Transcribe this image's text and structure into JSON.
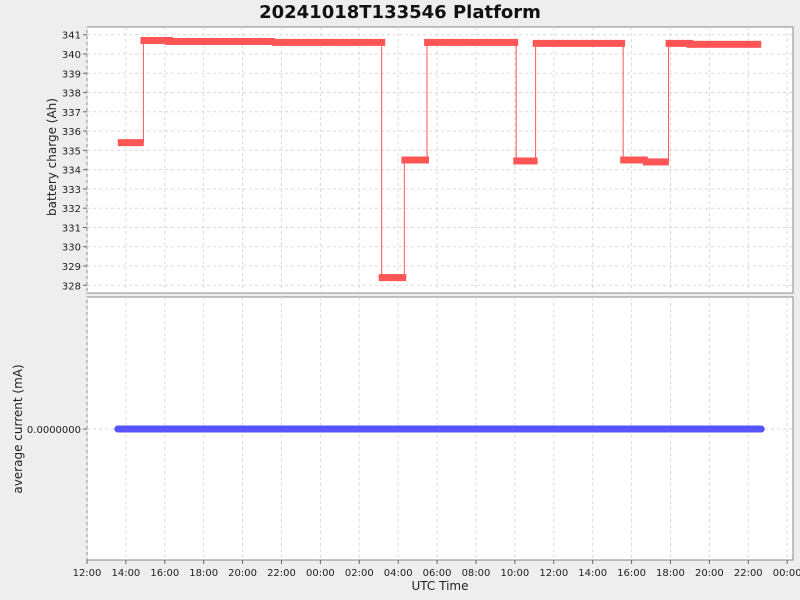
{
  "chart_data": {
    "title": "20241018T133546 Platform",
    "xlabel": "UTC Time",
    "x_ticks": [
      "12:00",
      "14:00",
      "16:00",
      "18:00",
      "20:00",
      "22:00",
      "00:00",
      "02:00",
      "04:00",
      "06:00",
      "08:00",
      "10:00",
      "12:00",
      "14:00",
      "16:00",
      "18:00",
      "20:00",
      "22:00",
      "00:00"
    ],
    "x_range_hours": [
      12.0,
      48.3
    ],
    "charts": [
      {
        "type": "line",
        "ylabel": "battery charge (Ah)",
        "ylim": [
          327.6,
          341.4
        ],
        "y_ticks": [
          341,
          340,
          339,
          338,
          337,
          336,
          335,
          334,
          333,
          332,
          331,
          330,
          329,
          328
        ],
        "grid": true,
        "color": "#ff5555",
        "series": [
          {
            "segments": [
              {
                "t0": "13:35",
                "t1": "14:55",
                "value": 335.4
              },
              {
                "t0": "14:45",
                "t1": "16:25",
                "value": 340.7
              },
              {
                "t0": "16:00",
                "t1": "21:40",
                "value": 340.65
              },
              {
                "t0": "21:30",
                "t1": "03:20",
                "value": 340.6
              },
              {
                "t0": "03:00",
                "t1": "04:25",
                "value": 328.4
              },
              {
                "t0": "04:10",
                "t1": "05:35",
                "value": 334.5
              },
              {
                "t0": "05:20",
                "t1": "10:10",
                "value": 340.6
              },
              {
                "t0": "09:55",
                "t1": "11:10",
                "value": 334.45
              },
              {
                "t0": "10:55",
                "t1": "15:40",
                "value": 340.55
              },
              {
                "t0": "15:25",
                "t1": "16:50",
                "value": 334.5
              },
              {
                "t0": "16:35",
                "t1": "17:55",
                "value": 334.4
              },
              {
                "t0": "17:45",
                "t1": "19:10",
                "value": 340.55
              },
              {
                "t0": "18:50",
                "t1": "22:40",
                "value": 340.5
              }
            ]
          }
        ]
      },
      {
        "type": "line",
        "ylabel": "average current (mA)",
        "y_ticks": [
          "0.0000000"
        ],
        "grid": true,
        "color": "#5555ff",
        "series": [
          {
            "x_start": "13:35",
            "x_end": "22:40",
            "value": 0.0
          }
        ]
      }
    ]
  }
}
